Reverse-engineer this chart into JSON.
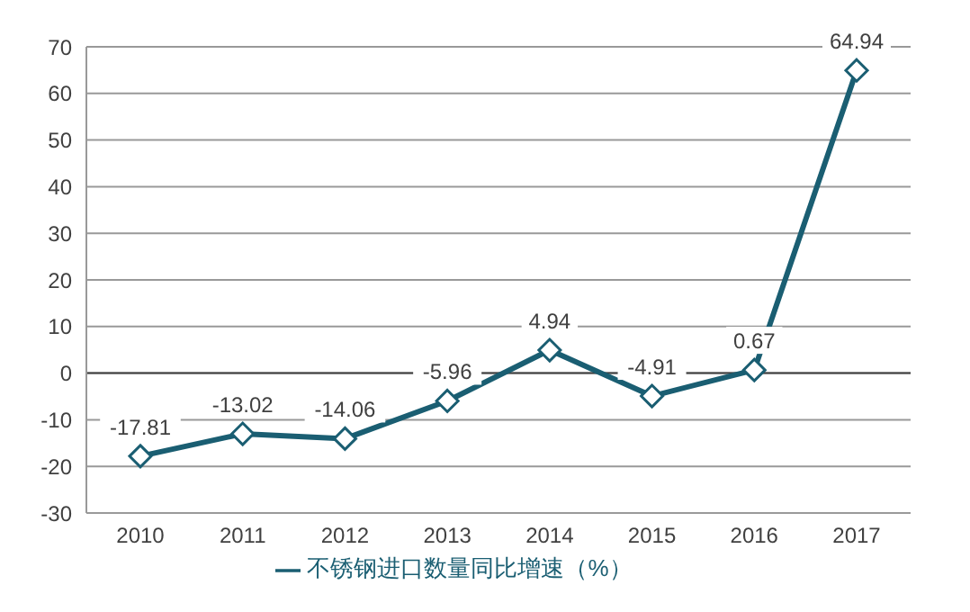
{
  "chart_data": {
    "type": "line",
    "categories": [
      "2010",
      "2011",
      "2012",
      "2013",
      "2014",
      "2015",
      "2016",
      "2017"
    ],
    "series": [
      {
        "name": "不锈钢进口数量同比增速（%）",
        "color": "#1a5e72",
        "values": [
          -17.81,
          -13.02,
          -14.06,
          -5.96,
          4.94,
          -4.91,
          0.67,
          64.94
        ]
      }
    ],
    "ylim": [
      -30,
      70
    ],
    "yticks": [
      -30,
      -20,
      -10,
      0,
      10,
      20,
      30,
      40,
      50,
      60,
      70
    ],
    "grid": "y",
    "legend": "bottom",
    "marker": "diamond",
    "line_style": "solid",
    "data_labels": true
  }
}
